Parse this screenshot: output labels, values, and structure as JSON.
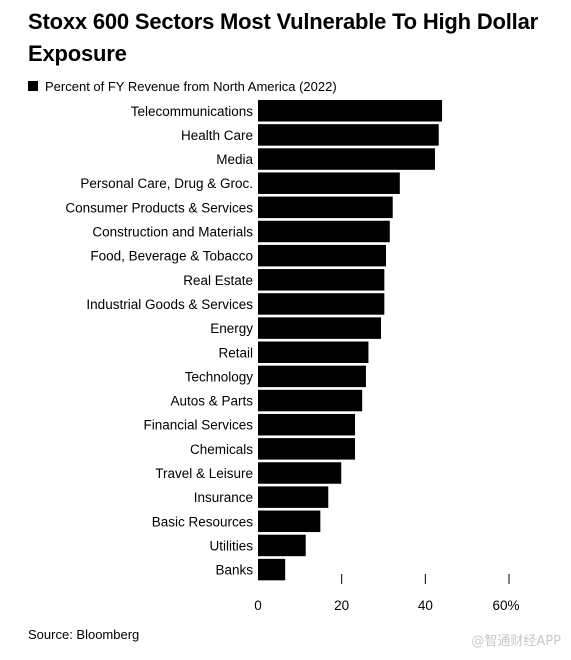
{
  "title": "Stoxx 600 Sectors Most Vulnerable To High Dollar Exposure",
  "source": "Source: Bloomberg",
  "watermark": "@智通财经APP",
  "colors": {
    "bar": "#000000",
    "axis": "#000000"
  },
  "chart_data": {
    "type": "bar",
    "orientation": "horizontal",
    "legend": "Percent of FY Revenue from North America (2022)",
    "legend_placement": "top-left",
    "grid": false,
    "xlim": [
      0,
      60
    ],
    "x_ticks": [
      "0",
      "20",
      "40",
      "60%"
    ],
    "categories": [
      "Telecommunications",
      "Health Care",
      "Media",
      "Personal Care, Drug & Groc.",
      "Consumer Products & Services",
      "Construction and Materials",
      "Food, Beverage & Tobacco",
      "Real Estate",
      "Industrial Goods & Services",
      "Energy",
      "Retail",
      "Technology",
      "Autos & Parts",
      "Financial Services",
      "Chemicals",
      "Travel & Leisure",
      "Insurance",
      "Basic Resources",
      "Utilities",
      "Banks"
    ],
    "values": [
      44.0,
      43.2,
      42.3,
      33.9,
      32.2,
      31.5,
      30.6,
      30.2,
      30.2,
      29.4,
      26.4,
      25.8,
      24.9,
      23.2,
      23.2,
      19.9,
      16.8,
      14.9,
      11.4,
      6.5
    ]
  }
}
